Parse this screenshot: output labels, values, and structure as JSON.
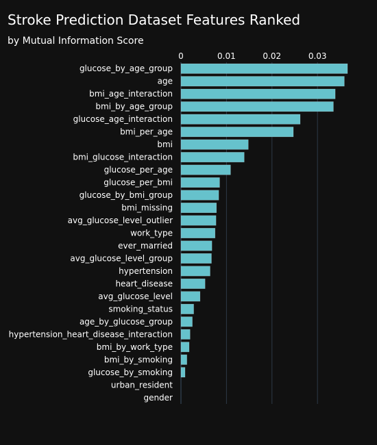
{
  "chart_data": {
    "type": "bar",
    "orientation": "horizontal",
    "title": "Stroke Prediction Dataset Features Ranked",
    "subtitle": "by Mutual Information Score",
    "xlabel": "",
    "ylabel": "",
    "x_axis_position": "top",
    "xlim": [
      0,
      0.0366
    ],
    "x_ticks": [
      0,
      0.01,
      0.02,
      0.03
    ],
    "x_tick_labels": [
      "0",
      "0.01",
      "0.02",
      "0.03"
    ],
    "grid": true,
    "bar_color": "#66c2cc",
    "background_color": "#111111",
    "grid_color": "#2e3a48",
    "categories": [
      "glucose_by_age_group",
      "age",
      "bmi_age_interaction",
      "bmi_by_age_group",
      "glucose_age_interaction",
      "bmi_per_age",
      "bmi",
      "bmi_glucose_interaction",
      "glucose_per_age",
      "glucose_per_bmi",
      "glucose_by_bmi_group",
      "bmi_missing",
      "avg_glucose_level_outlier",
      "work_type",
      "ever_married",
      "avg_glucose_level_group",
      "hypertension",
      "heart_disease",
      "avg_glucose_level",
      "smoking_status",
      "age_by_glucose_group",
      "hypertension_heart_disease_interaction",
      "bmi_by_work_type",
      "bmi_by_smoking",
      "glucose_by_smoking",
      "urban_resident",
      "gender"
    ],
    "values": [
      0.0366,
      0.0359,
      0.0339,
      0.0335,
      0.0262,
      0.0247,
      0.0148,
      0.0139,
      0.0109,
      0.0085,
      0.0083,
      0.0078,
      0.0077,
      0.0075,
      0.0068,
      0.0067,
      0.0064,
      0.0053,
      0.0042,
      0.0028,
      0.0025,
      0.002,
      0.0018,
      0.0013,
      0.0009,
      0.0,
      0.0
    ]
  }
}
